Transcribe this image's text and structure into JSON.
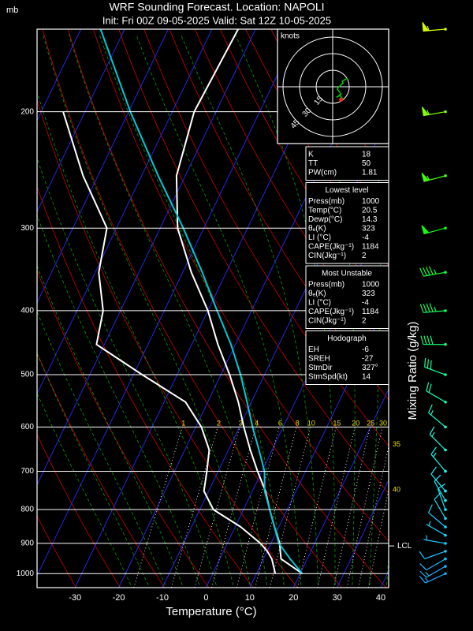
{
  "chart_data": {
    "type": "skew-t",
    "title": "WRF Sounding Forecast. Location: NAPOLI",
    "subtitle": "Init: Fri 00Z 09-05-2025   Valid: Sat 12Z 10-05-2025",
    "y_unit": "mb",
    "x_label": "Temperature (°C)",
    "y2_label": "Mixing Ratio (g/kg)",
    "log_y": true,
    "xlim": [
      -38.7,
      41.8
    ],
    "ylim": [
      1050,
      150
    ],
    "xticks": [
      -30,
      -20,
      -10,
      0,
      10,
      20,
      30,
      40
    ],
    "yticks": [
      200,
      300,
      400,
      500,
      600,
      700,
      800,
      900,
      1000
    ],
    "pressure_levels": [
      1000,
      950,
      925,
      900,
      850,
      800,
      750,
      700,
      650,
      600,
      550,
      500,
      450,
      400,
      350,
      300,
      250,
      200,
      150
    ],
    "series": [
      {
        "color": "#ffffff",
        "values": [
          20.5,
          14,
          13,
          12,
          9,
          6,
          3,
          -1,
          -5,
          -9,
          -13,
          -18,
          -24,
          -30,
          -38,
          -46,
          -52,
          -55,
          -54
        ]
      },
      {
        "color": "#ffffff",
        "values": [
          14.3,
          11.9,
          10,
          7.6,
          1.3,
          -6.9,
          -11.1,
          -12.6,
          -14.4,
          -18.7,
          -25.1,
          -38,
          -51.8,
          -54,
          -59.2,
          -62.2,
          -73.4,
          -85,
          null
        ]
      },
      {
        "color": "#00c8d8",
        "values": [
          20.5,
          16.1,
          14,
          11.8,
          9,
          6,
          2.8,
          0.6,
          -3,
          -7,
          -11,
          -15.5,
          -21,
          -27.9,
          -35.5,
          -44.7,
          -56.2,
          -69.6,
          -85.5
        ]
      }
    ],
    "mixing_ratios": [
      1,
      2,
      3,
      4,
      6,
      8,
      10,
      15,
      20,
      25,
      30,
      35,
      40
    ],
    "lcl": {
      "label": "LCL",
      "pressure": 908
    },
    "winds": {
      "pressure": [
        150,
        200,
        250,
        300,
        350,
        400,
        450,
        500,
        550,
        600,
        650,
        700,
        750,
        775,
        800,
        825,
        850,
        875,
        900,
        925,
        950,
        975,
        1000
      ],
      "speed": [
        55,
        55,
        55,
        50,
        45,
        45,
        40,
        30,
        20,
        15,
        15,
        15,
        10,
        10,
        10,
        10,
        10,
        5,
        5,
        10,
        10,
        15,
        15
      ],
      "direction": [
        265,
        260,
        255,
        255,
        260,
        265,
        270,
        290,
        300,
        310,
        315,
        320,
        320,
        330,
        340,
        330,
        310,
        300,
        280,
        250,
        240,
        240,
        245
      ]
    },
    "hodograph": {
      "unit": "knots",
      "rings": [
        15,
        30,
        45
      ]
    }
  },
  "panels": [
    {
      "rows": [
        [
          "K",
          18
        ],
        [
          "TT",
          50
        ],
        [
          "PW(cm)",
          1.81
        ]
      ]
    },
    {
      "title": "Lowest level",
      "rows": [
        [
          "Press(mb)",
          1000
        ],
        [
          "Temp(°C)",
          20.5
        ],
        [
          "Dewp(°C)",
          14.3
        ],
        [
          "θₑ(K)",
          323
        ],
        [
          "LI (°C)",
          -4
        ],
        [
          "CAPE(Jkg⁻¹)",
          1184
        ],
        [
          "CIN(Jkg⁻¹)",
          2
        ]
      ]
    },
    {
      "title": "Most Unstable",
      "rows": [
        [
          "Press(mb)",
          1000
        ],
        [
          "θₑ(K)",
          323
        ],
        [
          "LI (°C)",
          -4
        ],
        [
          "CAPE(Jkg⁻¹)",
          1184
        ],
        [
          "CIN(Jkg⁻¹)",
          2
        ]
      ]
    },
    {
      "title": "Hodograph",
      "rows": [
        [
          "EH",
          -6
        ],
        [
          "SREH",
          -27
        ],
        [
          "StmDir",
          {
            "value": 327,
            "label": "327°"
          }
        ],
        [
          "StmSpd(kt)",
          14
        ]
      ]
    }
  ]
}
